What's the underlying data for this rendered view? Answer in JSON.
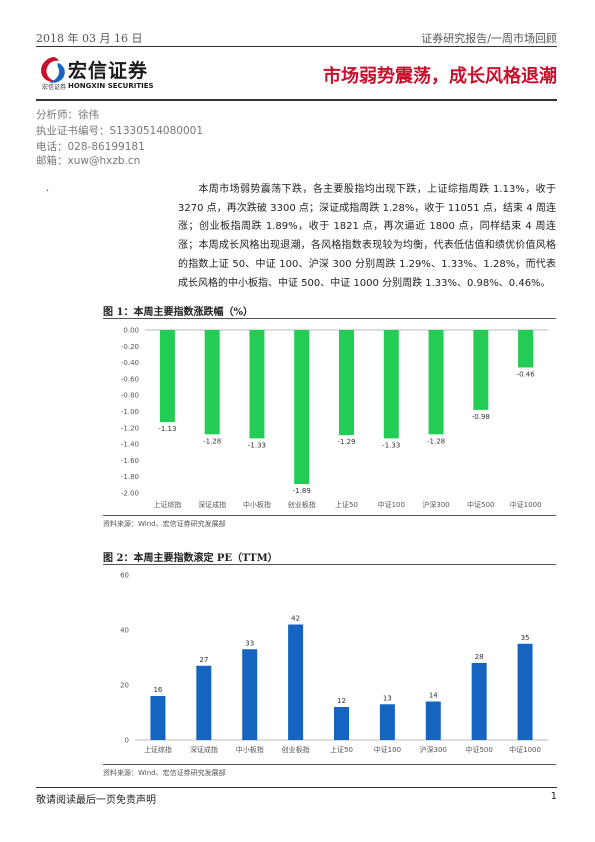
{
  "header": {
    "date": "2018 年 03 月 16 日",
    "report_type": "证券研究报告/一周市场回顾",
    "logo_cn": "宏信证券",
    "logo_sub": "宏信证券",
    "logo_en": "HONGXIN SECURITIES",
    "title": "市场弱势震荡，成长风格退潮"
  },
  "analyst": {
    "name_line": "分析师：徐伟",
    "cert_line": "执业证书编号：S1330514080001",
    "phone_line": "电话：028-86199181",
    "email_line": "邮箱：xuw@hxzb.cn"
  },
  "bullet": "·",
  "summary": "本周市场弱势震荡下跌，各主要股指均出现下跌，上证综指周跌 1.13%，收于 3270 点，再次跌破 3300 点；深证成指周跌 1.28%，收于 11051 点，结束 4 周连涨；创业板指周跌 1.89%，收于 1821 点，再次逼近 1800 点，同样结束 4 周连涨；本周成长风格出现退潮，各风格指数表现较为均衡，代表低估值和绩优价值风格的指数上证 50、中证 100、沪深 300 分别周跌 1.29%、1.33%、1.28%，而代表成长风格的中小板指、中证 500、中证 1000 分别周跌 1.33%、0.98%、0.46%。",
  "figure1": {
    "title": "图 1：本周主要指数涨跌幅（%）",
    "source": "资料来源：Wind、宏信证券研究发展部"
  },
  "figure2": {
    "title": "图 2：本周主要指数滚定 PE（TTM）",
    "source": "资料来源：Wind、宏信证券研究发展部"
  },
  "footer": {
    "disclaimer": "敬请阅读最后一页免责声明",
    "page": "1"
  },
  "chart_data": [
    {
      "type": "bar",
      "categories": [
        "上证综指",
        "深证成指",
        "中小板指",
        "创业板指",
        "上证50",
        "中证100",
        "沪深300",
        "中证500",
        "中证1000"
      ],
      "values": [
        -1.13,
        -1.28,
        -1.33,
        -1.89,
        -1.29,
        -1.33,
        -1.28,
        -0.98,
        -0.46
      ],
      "data_labels": [
        "-1.13",
        "-1.28",
        "-1.33",
        "-1.89",
        "-1.29",
        "-1.33",
        "-1.28",
        "-0.98",
        "-0.46"
      ],
      "yticks": [
        "0.00",
        "-0.20",
        "-0.40",
        "-0.60",
        "-0.80",
        "-1.00",
        "-1.20",
        "-1.40",
        "-1.60",
        "-1.80",
        "-2.00"
      ],
      "ylim": [
        -2.0,
        0.0
      ],
      "color": "#22cc55",
      "grid": false
    },
    {
      "type": "bar",
      "categories": [
        "上证综指",
        "深证成指",
        "中小板指",
        "创业板指",
        "上证50",
        "中证100",
        "沪深300",
        "中证500",
        "中证1000"
      ],
      "values": [
        16,
        27,
        33,
        42,
        12,
        13,
        14,
        28,
        35
      ],
      "data_labels": [
        "16",
        "27",
        "33",
        "42",
        "12",
        "13",
        "14",
        "28",
        "35"
      ],
      "yticks": [
        "0",
        "20",
        "40",
        "60"
      ],
      "ylim": [
        0,
        60
      ],
      "color": "#1565c0",
      "grid": false
    }
  ]
}
